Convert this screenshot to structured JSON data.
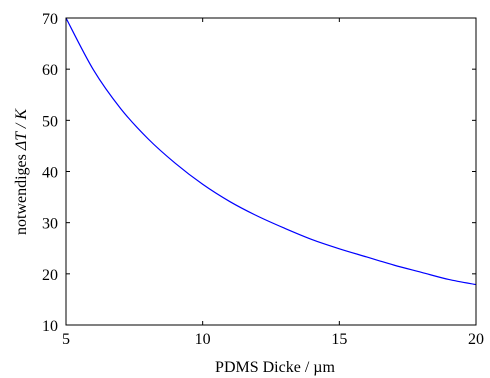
{
  "chart_data": {
    "type": "line",
    "title": "",
    "xlabel": "PDMS Dicke / µm",
    "ylabel_text": "notwendiges ",
    "ylabel_math": "ΔT / K",
    "xlim": [
      5,
      20
    ],
    "ylim": [
      10,
      70
    ],
    "xticks": [
      "5",
      "10",
      "15",
      "20"
    ],
    "yticks": [
      "10",
      "20",
      "30",
      "40",
      "50",
      "60",
      "70"
    ],
    "grid": false,
    "legend": "none",
    "line_color": "#0000ff",
    "series": [
      {
        "x": [
          5,
          6,
          7,
          8,
          9,
          10,
          11,
          12,
          13,
          14,
          15,
          16,
          17,
          18,
          19,
          20
        ],
        "y": [
          70,
          59.9,
          52.3,
          46.4,
          41.6,
          37.5,
          34.1,
          31.3,
          28.9,
          26.7,
          24.9,
          23.3,
          21.7,
          20.3,
          18.9,
          17.9
        ]
      }
    ]
  }
}
